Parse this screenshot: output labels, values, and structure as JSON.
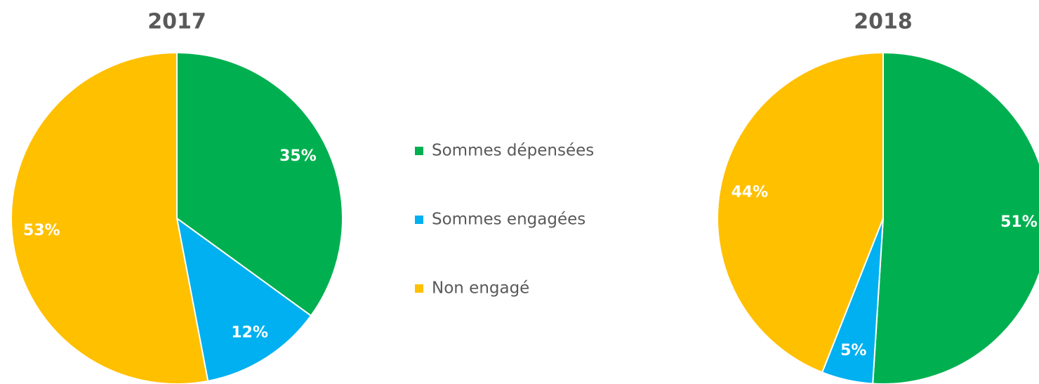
{
  "chart_data": [
    {
      "type": "pie",
      "title": "2017",
      "categories": [
        "Sommes dépensées",
        "Sommes engagées",
        "Non engagé"
      ],
      "values": [
        35,
        12,
        53
      ],
      "value_labels": [
        "35%",
        "12%",
        "53%"
      ],
      "colors": [
        "#00b050",
        "#00b0f0",
        "#ffc000"
      ]
    },
    {
      "type": "pie",
      "title": "2018",
      "categories": [
        "Sommes dépensées",
        "Sommes engagées",
        "Non engagé"
      ],
      "values": [
        51,
        5,
        44
      ],
      "value_labels": [
        "51%",
        "5%",
        "44%"
      ],
      "colors": [
        "#00b050",
        "#00b0f0",
        "#ffc000"
      ]
    }
  ]
}
